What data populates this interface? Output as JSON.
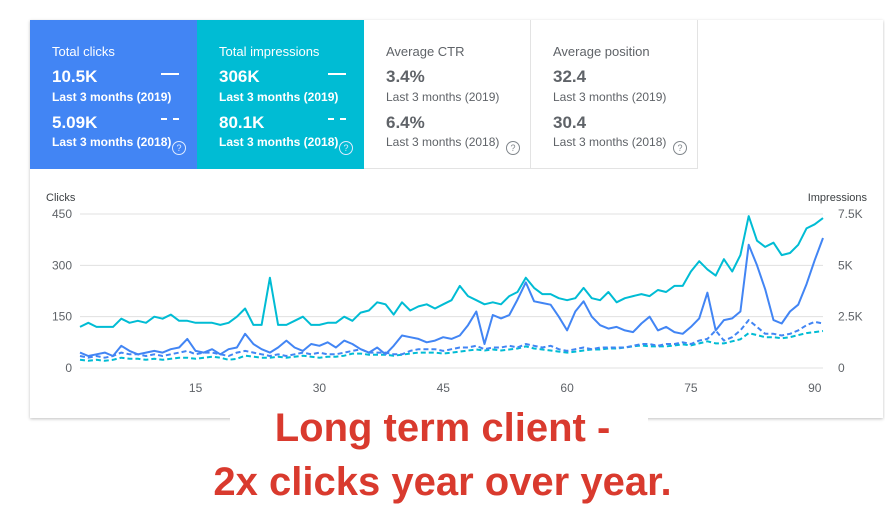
{
  "cards": [
    {
      "label": "Total clicks",
      "value_2019": "10.5K",
      "period_2019": "Last 3 months (2019)",
      "value_2018": "5.09K",
      "period_2018": "Last 3 months (2018)"
    },
    {
      "label": "Total impressions",
      "value_2019": "306K",
      "period_2019": "Last 3 months (2019)",
      "value_2018": "80.1K",
      "period_2018": "Last 3 months (2018)"
    },
    {
      "label": "Average CTR",
      "value_2019": "3.4%",
      "period_2019": "Last 3 months (2019)",
      "value_2018": "6.4%",
      "period_2018": "Last 3 months (2018)"
    },
    {
      "label": "Average position",
      "value_2019": "32.4",
      "period_2019": "Last 3 months (2019)",
      "value_2018": "30.4",
      "period_2018": "Last 3 months (2018)"
    }
  ],
  "help_glyph": "?",
  "caption": {
    "line1": "Long term client -",
    "line2": "2x clicks year over year."
  },
  "colors": {
    "clicks": "#4285f4",
    "impressions": "#00bcd4",
    "grid": "#e0e0e0",
    "axis_text": "#5f6368",
    "caption": "#d93a2e"
  },
  "chart_data": {
    "type": "line",
    "left_axis_label": "Clicks",
    "right_axis_label": "Impressions",
    "left_ticks": [
      "0",
      "150",
      "300",
      "450"
    ],
    "right_ticks": [
      "0",
      "2.5K",
      "5K",
      "7.5K"
    ],
    "x_ticks": [
      "15",
      "30",
      "45",
      "60",
      "75",
      "90"
    ],
    "xlim": [
      1,
      91
    ],
    "ylim_left": [
      0,
      450
    ],
    "ylim_right": [
      0,
      7500
    ],
    "grid": true,
    "x": [
      1,
      2,
      3,
      4,
      5,
      6,
      7,
      8,
      9,
      10,
      11,
      12,
      13,
      14,
      15,
      16,
      17,
      18,
      19,
      20,
      21,
      22,
      23,
      24,
      25,
      26,
      27,
      28,
      29,
      30,
      31,
      32,
      33,
      34,
      35,
      36,
      37,
      38,
      39,
      40,
      41,
      42,
      43,
      44,
      45,
      46,
      47,
      48,
      49,
      50,
      51,
      52,
      53,
      54,
      55,
      56,
      57,
      58,
      59,
      60,
      61,
      62,
      63,
      64,
      65,
      66,
      67,
      68,
      69,
      70,
      71,
      72,
      73,
      74,
      75,
      76,
      77,
      78,
      79,
      80,
      81,
      82,
      83,
      84,
      85,
      86,
      87,
      88,
      89,
      90,
      91
    ],
    "series": [
      {
        "name": "Clicks (2019)",
        "axis": "left",
        "style": "solid",
        "color": "#4285f4",
        "values": [
          45,
          35,
          40,
          45,
          35,
          65,
          50,
          40,
          45,
          50,
          45,
          55,
          60,
          85,
          50,
          45,
          55,
          40,
          55,
          60,
          100,
          70,
          55,
          45,
          60,
          80,
          60,
          50,
          70,
          65,
          75,
          60,
          80,
          70,
          55,
          45,
          60,
          40,
          65,
          95,
          90,
          85,
          75,
          80,
          90,
          85,
          95,
          125,
          165,
          70,
          155,
          145,
          155,
          200,
          250,
          195,
          190,
          185,
          150,
          110,
          165,
          195,
          150,
          125,
          115,
          120,
          110,
          105,
          130,
          150,
          110,
          120,
          105,
          100,
          120,
          145,
          220,
          110,
          140,
          145,
          165,
          360,
          300,
          230,
          140,
          130,
          165,
          185,
          245,
          315,
          380
        ]
      },
      {
        "name": "Impressions (2019)",
        "axis": "right",
        "style": "solid",
        "color": "#00bcd4",
        "values": [
          2000,
          2200,
          2000,
          2000,
          2000,
          2400,
          2200,
          2300,
          2200,
          2500,
          2400,
          2600,
          2300,
          2300,
          2200,
          2200,
          2200,
          2100,
          2200,
          2500,
          2900,
          2100,
          2100,
          4400,
          2100,
          2100,
          2300,
          2500,
          2100,
          2100,
          2200,
          2200,
          2500,
          2300,
          2700,
          2800,
          3200,
          3100,
          2600,
          3200,
          2800,
          3000,
          3100,
          2900,
          3100,
          3300,
          4000,
          3500,
          3300,
          3100,
          3200,
          3100,
          3500,
          3700,
          4400,
          3900,
          3600,
          3600,
          3400,
          3300,
          3400,
          3900,
          3400,
          3300,
          3700,
          3200,
          3400,
          3500,
          3600,
          3500,
          3800,
          3700,
          4000,
          4000,
          4700,
          5200,
          4800,
          4500,
          5300,
          4700,
          5500,
          7400,
          6200,
          5900,
          6100,
          5500,
          5600,
          6000,
          6800,
          7000,
          7300
        ]
      },
      {
        "name": "Clicks (2018)",
        "axis": "left",
        "style": "dashed",
        "color": "#4285f4",
        "values": [
          35,
          30,
          35,
          30,
          35,
          45,
          40,
          40,
          35,
          40,
          35,
          40,
          45,
          50,
          40,
          45,
          45,
          40,
          35,
          45,
          50,
          45,
          40,
          35,
          40,
          35,
          40,
          45,
          40,
          45,
          40,
          40,
          45,
          50,
          55,
          45,
          45,
          45,
          40,
          40,
          50,
          55,
          55,
          55,
          50,
          55,
          60,
          60,
          65,
          55,
          60,
          60,
          65,
          60,
          70,
          65,
          60,
          65,
          55,
          50,
          55,
          60,
          55,
          60,
          60,
          60,
          60,
          65,
          70,
          70,
          65,
          70,
          70,
          75,
          70,
          80,
          85,
          110,
          80,
          90,
          110,
          140,
          120,
          100,
          100,
          95,
          100,
          110,
          125,
          135,
          130
        ]
      },
      {
        "name": "Impressions (2018)",
        "axis": "right",
        "style": "dashed",
        "color": "#00bcd4",
        "values": [
          400,
          350,
          400,
          350,
          400,
          500,
          450,
          450,
          400,
          450,
          400,
          450,
          500,
          500,
          450,
          500,
          550,
          500,
          400,
          450,
          600,
          550,
          500,
          500,
          550,
          500,
          550,
          600,
          550,
          500,
          550,
          550,
          600,
          700,
          700,
          650,
          650,
          650,
          600,
          650,
          700,
          750,
          750,
          750,
          700,
          750,
          800,
          850,
          900,
          850,
          900,
          850,
          900,
          950,
          1050,
          950,
          900,
          850,
          800,
          750,
          800,
          850,
          900,
          900,
          950,
          950,
          1000,
          1050,
          1100,
          1050,
          1050,
          1050,
          1100,
          1150,
          1100,
          1200,
          1300,
          1200,
          1200,
          1300,
          1400,
          1700,
          1600,
          1500,
          1500,
          1450,
          1500,
          1600,
          1700,
          1750,
          1800
        ]
      }
    ]
  }
}
